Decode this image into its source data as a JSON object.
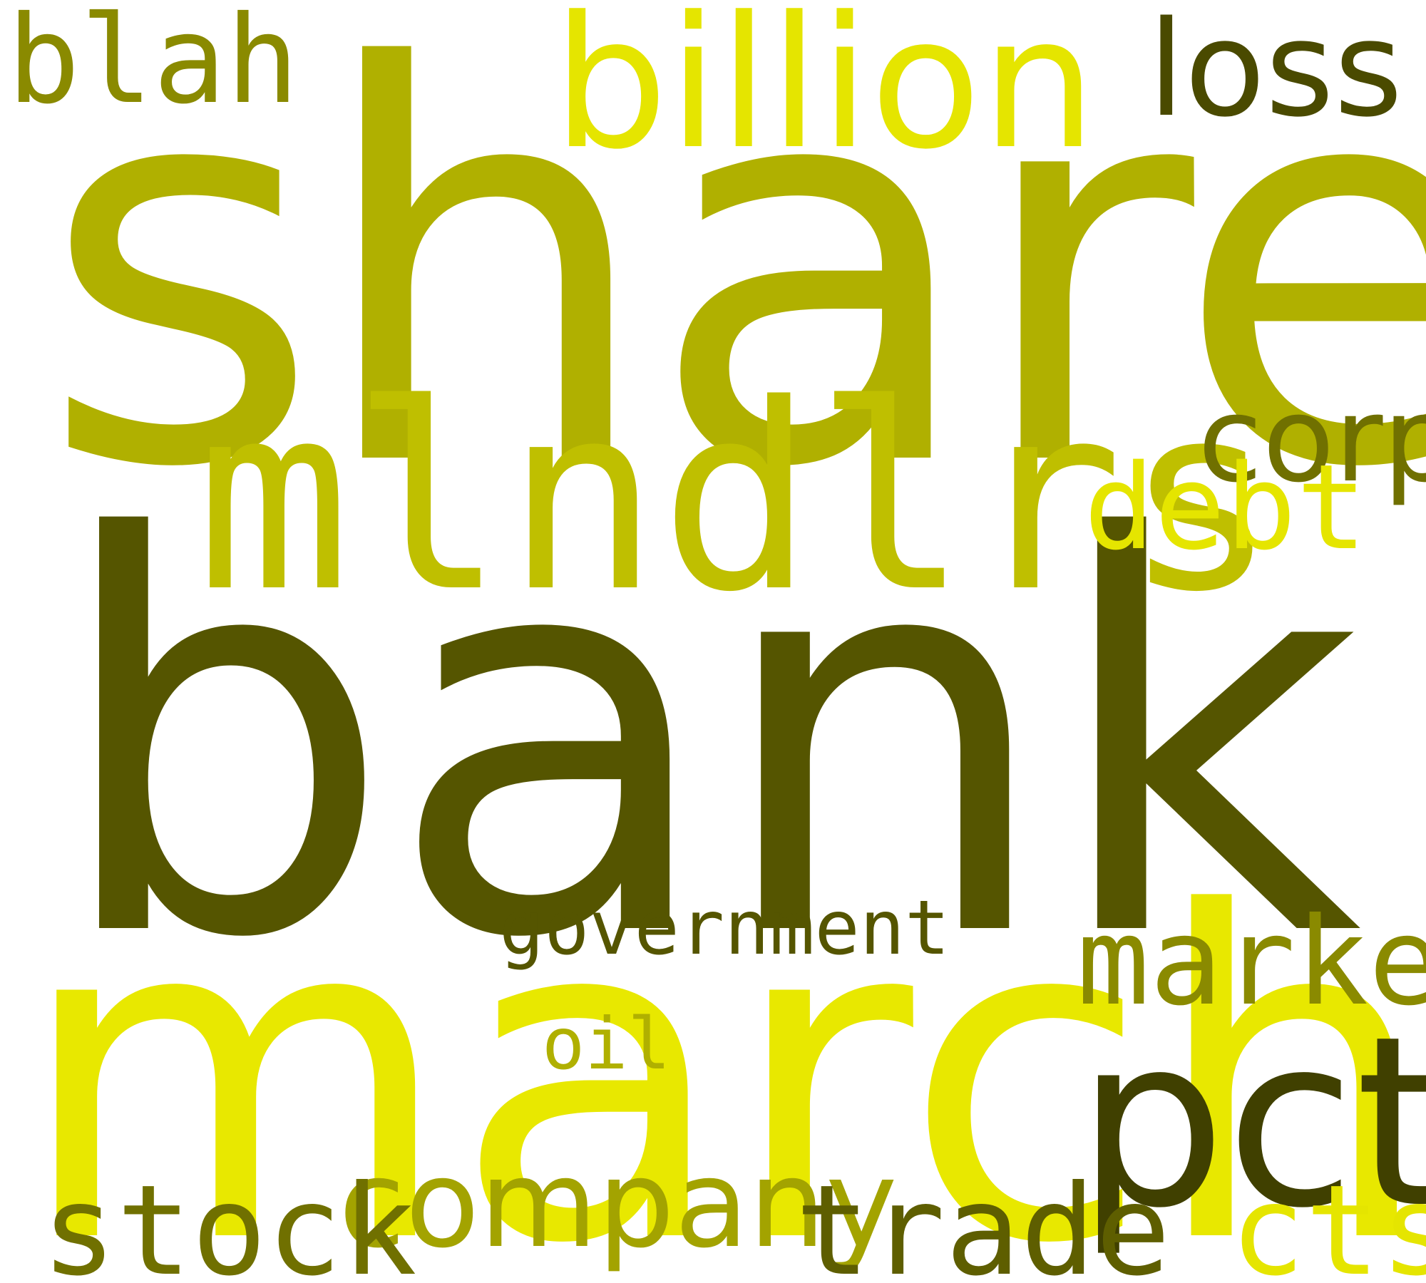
{
  "wordcloud": {
    "words": {
      "share": {
        "text": "share",
        "color": "#b0b000"
      },
      "bank": {
        "text": "bank",
        "color": "#555500"
      },
      "march": {
        "text": "march",
        "color": "#e8e800"
      },
      "mlndlrs": {
        "text": "mlndlrs",
        "color": "#bfbf00"
      },
      "billion": {
        "text": "billion",
        "color": "#e5e500"
      },
      "loss": {
        "text": "loss",
        "color": "#4a4a00"
      },
      "blah": {
        "text": "blah",
        "color": "#8a8a00"
      },
      "corp": {
        "text": "corp",
        "color": "#707000"
      },
      "debt": {
        "text": "debt",
        "color": "#e5e500"
      },
      "government": {
        "text": "government",
        "color": "#555500"
      },
      "market": {
        "text": "market",
        "color": "#8a8a00"
      },
      "pct": {
        "text": "pct",
        "color": "#404000"
      },
      "oil": {
        "text": "oil",
        "color": "#b0b000"
      },
      "company": {
        "text": "company",
        "color": "#a3a300"
      },
      "stock": {
        "text": "stock",
        "color": "#707000"
      },
      "trade": {
        "text": "trade",
        "color": "#5e5e00"
      },
      "cts": {
        "text": "cts",
        "color": "#e5e500"
      }
    }
  }
}
